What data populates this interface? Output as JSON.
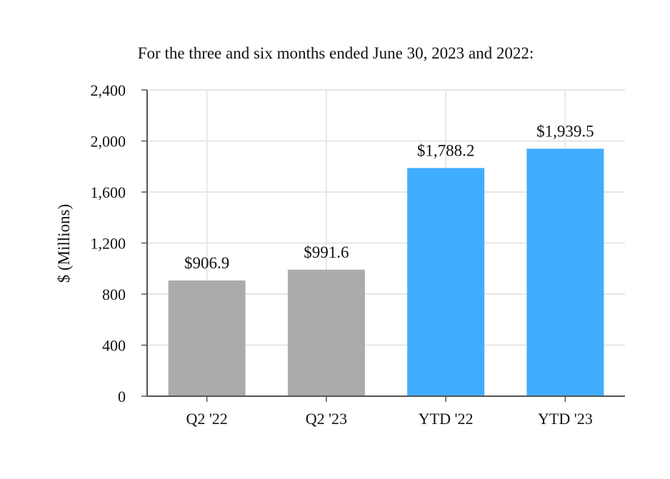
{
  "chart_data": {
    "type": "bar",
    "title": "For the three and six months ended June 30, 2023 and 2022:",
    "xlabel": "",
    "ylabel": "$ (Millions)",
    "ylim": [
      0,
      2400
    ],
    "yticks": [
      0,
      400,
      800,
      1200,
      1600,
      2000,
      2400
    ],
    "ytick_labels": [
      "0",
      "400",
      "800",
      "1,200",
      "1,600",
      "2,000",
      "2,400"
    ],
    "categories": [
      "Q2 '22",
      "Q2 '23",
      "YTD '22",
      "YTD '23"
    ],
    "values": [
      906.9,
      991.6,
      1788.2,
      1939.5
    ],
    "data_labels": [
      "$906.9",
      "$991.6",
      "$1,788.2",
      "$1,939.5"
    ],
    "bar_colors": [
      "#ababab",
      "#ababab",
      "#41adff",
      "#41adff"
    ],
    "grid": true,
    "grid_color": "#e6e6e6",
    "axis_color": "#555555"
  }
}
